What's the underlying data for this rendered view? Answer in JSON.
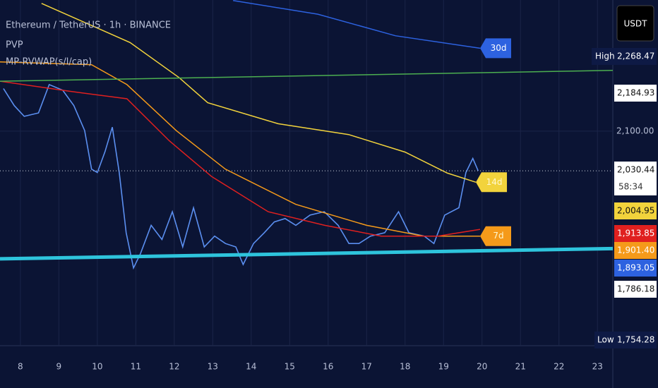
{
  "chart_data": {
    "type": "line",
    "title": "Ethereum / TetherUS · 1h · BINANCE",
    "indicators": [
      "PVP",
      "MP-RVWAP(s/l/cap)"
    ],
    "currency": "USDT",
    "xlim": [
      7.47,
      23.4
    ],
    "xticks": [
      8,
      9,
      10,
      11,
      12,
      13,
      14,
      15,
      16,
      17,
      18,
      19,
      20,
      21,
      22,
      23
    ],
    "ylim": [
      1722,
      2331
    ],
    "yticks": [
      {
        "value": 2100,
        "label": "2,100.00"
      }
    ],
    "grid": true,
    "series": [
      {
        "color": "#5b8ff0",
        "x": [
          7.56,
          7.84,
          8.1,
          8.47,
          8.75,
          9.1,
          9.39,
          9.67,
          9.85,
          10.0,
          10.2,
          10.39,
          10.57,
          10.75,
          10.94,
          11.12,
          11.4,
          11.68,
          11.95,
          12.22,
          12.5,
          12.78,
          13.05,
          13.33,
          13.6,
          13.79,
          14.06,
          14.34,
          14.6,
          14.88,
          15.16,
          15.53,
          15.9,
          16.26,
          16.54,
          16.8,
          17.1,
          17.47,
          17.83,
          18.1,
          18.5,
          18.75,
          19.03,
          19.4,
          19.58,
          19.76,
          19.9
        ],
        "values": [
          2175,
          2145,
          2126,
          2132,
          2182,
          2172,
          2145,
          2101,
          2033,
          2027,
          2064,
          2107,
          2027,
          1921,
          1859,
          1884,
          1934,
          1909,
          1958,
          1896,
          1965,
          1896,
          1915,
          1902,
          1896,
          1865,
          1902,
          1921,
          1940,
          1946,
          1934,
          1952,
          1958,
          1934,
          1902,
          1902,
          1915,
          1921,
          1958,
          1921,
          1915,
          1902,
          1952,
          1965,
          2027,
          2052,
          2030
        ]
      },
      {
        "name": "30d",
        "color": "#2d62e0",
        "x": [
          13.53,
          15.73,
          17.75,
          19.95
        ],
        "values": [
          2330,
          2306,
          2268,
          2246
        ]
      },
      {
        "name": "14d",
        "color": "#f2d33c",
        "x": [
          8.55,
          10.85,
          12.13,
          12.87,
          14.7,
          16.53,
          18.0,
          19.1,
          19.84
        ],
        "values": [
          2325,
          2256,
          2194,
          2150,
          2113,
          2094,
          2063,
          2026,
          2010
        ]
      },
      {
        "name": "7d",
        "color": "#f59a1a",
        "x": [
          7.47,
          9.85,
          10.77,
          12.05,
          13.33,
          15.16,
          17.0,
          18.48,
          19.95
        ],
        "values": [
          2222,
          2217,
          2182,
          2101,
          2033,
          1971,
          1934,
          1915,
          1915
        ]
      },
      {
        "color": "#e0201f",
        "x": [
          7.47,
          9.3,
          10.77,
          11.87,
          12.97,
          14.44,
          15.91,
          17.38,
          18.85,
          19.95
        ],
        "values": [
          2188,
          2170,
          2157,
          2083,
          2020,
          1958,
          1934,
          1915,
          1915,
          1927
        ]
      },
      {
        "color": "#4caf50",
        "x": [
          7.47,
          23.4
        ],
        "values": [
          2188,
          2207
        ]
      },
      {
        "color": "#2ec4dc",
        "x": [
          7.47,
          23.4
        ],
        "values": [
          1875,
          1893
        ]
      }
    ],
    "high_label": "High",
    "low_label": "Low",
    "countdown": "58:34",
    "price_labels": [
      {
        "value": 2268.47,
        "label": "2,268.47",
        "color": "#0e1a45"
      },
      {
        "value": 2184.93,
        "label": "2,184.93",
        "color": "#ffffff"
      },
      {
        "value": 2030.44,
        "label": "2,030.44",
        "color": "#ffffff"
      },
      {
        "value": 2004.95,
        "label": "2,004.95",
        "color": "#f2d33c"
      },
      {
        "value": 1913.85,
        "label": "1,913.85",
        "color": "#e0201f"
      },
      {
        "value": 1901.4,
        "label": "1,901.40",
        "color": "#f59a1a"
      },
      {
        "value": 1893.05,
        "label": "1,893.05",
        "color": "#2d62e0"
      },
      {
        "value": 1786.18,
        "label": "1,786.18",
        "color": "#ffffff"
      },
      {
        "value": 1754.28,
        "label": "1,754.28",
        "color": "#0e1a45"
      }
    ]
  }
}
